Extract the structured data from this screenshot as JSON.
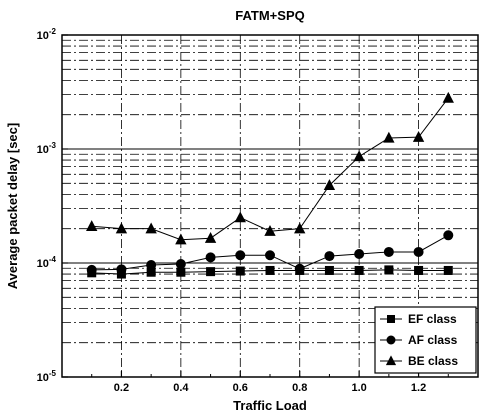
{
  "chart_data": {
    "type": "line",
    "title": "FATM+SPQ",
    "xlabel": "Traffic Load",
    "ylabel": "Average packet delay [sec]",
    "x_scale": "linear",
    "y_scale": "log",
    "xlim": [
      0.0,
      1.4
    ],
    "ylim": [
      1e-05,
      0.01
    ],
    "x_ticks": [
      {
        "value": 0.2,
        "label": "0.2"
      },
      {
        "value": 0.4,
        "label": "0.4"
      },
      {
        "value": 0.6,
        "label": "0.6"
      },
      {
        "value": 0.8,
        "label": "0.8"
      },
      {
        "value": 1.0,
        "label": "1.0"
      },
      {
        "value": 1.2,
        "label": "1.2"
      }
    ],
    "y_ticks": [
      {
        "value": 1e-05,
        "base": "10",
        "exp": "-5"
      },
      {
        "value": 0.0001,
        "base": "10",
        "exp": "-4"
      },
      {
        "value": 0.001,
        "base": "10",
        "exp": "-3"
      },
      {
        "value": 0.01,
        "base": "10",
        "exp": "-2"
      }
    ],
    "grid": true,
    "legend_position": "bottom-right",
    "x": [
      0.1,
      0.2,
      0.3,
      0.4,
      0.5,
      0.6,
      0.7,
      0.8,
      0.9,
      1.0,
      1.1,
      1.2,
      1.3
    ],
    "series": [
      {
        "name": "EF class",
        "marker": "square",
        "values": [
          8.2e-05,
          8e-05,
          8.3e-05,
          8.3e-05,
          8.4e-05,
          8.5e-05,
          8.6e-05,
          8.6e-05,
          8.6e-05,
          8.6e-05,
          8.7e-05,
          8.6e-05,
          8.6e-05
        ]
      },
      {
        "name": "AF class",
        "marker": "circle",
        "values": [
          8.7e-05,
          8.8e-05,
          9.6e-05,
          9.8e-05,
          0.000112,
          0.000117,
          0.000117,
          8.9e-05,
          0.000115,
          0.00012,
          0.000125,
          0.000125,
          0.000175
        ]
      },
      {
        "name": "BE class",
        "marker": "triangle",
        "values": [
          0.00021,
          0.0002,
          0.0002,
          0.00016,
          0.000165,
          0.00025,
          0.00019,
          0.0002,
          0.00048,
          0.00086,
          0.00125,
          0.00127,
          0.0028
        ]
      }
    ]
  }
}
